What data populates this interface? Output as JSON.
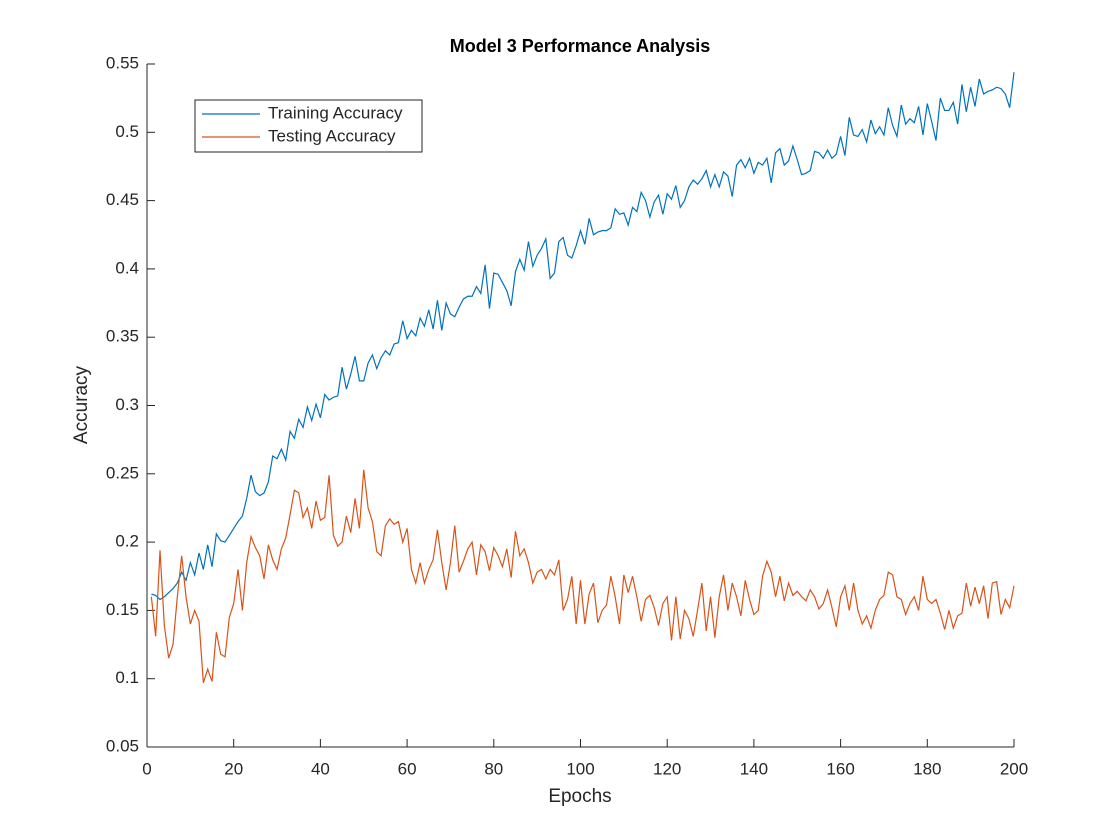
{
  "chart_data": {
    "type": "line",
    "title": "Model 3 Performance Analysis",
    "x_label": "Epochs",
    "y_label": "Accuracy",
    "x": [
      1,
      2,
      3,
      4,
      5,
      6,
      7,
      8,
      9,
      10,
      11,
      12,
      13,
      14,
      15,
      16,
      17,
      18,
      19,
      20,
      21,
      22,
      23,
      24,
      25,
      26,
      27,
      28,
      29,
      30,
      31,
      32,
      33,
      34,
      35,
      36,
      37,
      38,
      39,
      40,
      41,
      42,
      43,
      44,
      45,
      46,
      47,
      48,
      49,
      50,
      51,
      52,
      53,
      54,
      55,
      56,
      57,
      58,
      59,
      60,
      61,
      62,
      63,
      64,
      65,
      66,
      67,
      68,
      69,
      70,
      71,
      72,
      73,
      74,
      75,
      76,
      77,
      78,
      79,
      80,
      81,
      82,
      83,
      84,
      85,
      86,
      87,
      88,
      89,
      90,
      91,
      92,
      93,
      94,
      95,
      96,
      97,
      98,
      99,
      100,
      101,
      102,
      103,
      104,
      105,
      106,
      107,
      108,
      109,
      110,
      111,
      112,
      113,
      114,
      115,
      116,
      117,
      118,
      119,
      120,
      121,
      122,
      123,
      124,
      125,
      126,
      127,
      128,
      129,
      130,
      131,
      132,
      133,
      134,
      135,
      136,
      137,
      138,
      139,
      140,
      141,
      142,
      143,
      144,
      145,
      146,
      147,
      148,
      149,
      150,
      151,
      152,
      153,
      154,
      155,
      156,
      157,
      158,
      159,
      160,
      161,
      162,
      163,
      164,
      165,
      166,
      167,
      168,
      169,
      170,
      171,
      172,
      173,
      174,
      175,
      176,
      177,
      178,
      179,
      180,
      181,
      182,
      183,
      184,
      185,
      186,
      187,
      188,
      189,
      190,
      191,
      192,
      193,
      194,
      195,
      196,
      197,
      198,
      199,
      200
    ],
    "series": [
      {
        "name": "Training Accuracy",
        "color": "#0072bd",
        "values": [
          0.162,
          0.161,
          0.158,
          0.16,
          0.163,
          0.166,
          0.17,
          0.178,
          0.172,
          0.185,
          0.176,
          0.192,
          0.18,
          0.198,
          0.182,
          0.206,
          0.201,
          0.2,
          0.205,
          0.21,
          0.215,
          0.219,
          0.232,
          0.249,
          0.237,
          0.234,
          0.236,
          0.244,
          0.263,
          0.261,
          0.268,
          0.26,
          0.281,
          0.276,
          0.29,
          0.284,
          0.299,
          0.289,
          0.301,
          0.291,
          0.308,
          0.304,
          0.306,
          0.307,
          0.328,
          0.312,
          0.323,
          0.336,
          0.318,
          0.318,
          0.331,
          0.337,
          0.327,
          0.335,
          0.34,
          0.337,
          0.345,
          0.346,
          0.362,
          0.349,
          0.355,
          0.351,
          0.364,
          0.358,
          0.37,
          0.356,
          0.377,
          0.355,
          0.375,
          0.367,
          0.365,
          0.372,
          0.378,
          0.38,
          0.38,
          0.387,
          0.382,
          0.403,
          0.371,
          0.397,
          0.396,
          0.39,
          0.384,
          0.373,
          0.398,
          0.407,
          0.399,
          0.42,
          0.402,
          0.41,
          0.415,
          0.422,
          0.393,
          0.397,
          0.42,
          0.423,
          0.41,
          0.408,
          0.417,
          0.428,
          0.418,
          0.437,
          0.425,
          0.427,
          0.428,
          0.428,
          0.43,
          0.444,
          0.44,
          0.441,
          0.432,
          0.445,
          0.442,
          0.456,
          0.45,
          0.438,
          0.449,
          0.454,
          0.44,
          0.455,
          0.451,
          0.461,
          0.445,
          0.45,
          0.46,
          0.465,
          0.462,
          0.466,
          0.472,
          0.46,
          0.469,
          0.46,
          0.471,
          0.468,
          0.453,
          0.476,
          0.48,
          0.474,
          0.481,
          0.47,
          0.478,
          0.476,
          0.481,
          0.463,
          0.485,
          0.488,
          0.476,
          0.479,
          0.49,
          0.48,
          0.469,
          0.47,
          0.472,
          0.486,
          0.485,
          0.481,
          0.487,
          0.481,
          0.484,
          0.497,
          0.483,
          0.511,
          0.498,
          0.497,
          0.502,
          0.493,
          0.509,
          0.499,
          0.504,
          0.498,
          0.518,
          0.505,
          0.497,
          0.52,
          0.506,
          0.51,
          0.507,
          0.519,
          0.498,
          0.521,
          0.508,
          0.494,
          0.525,
          0.516,
          0.516,
          0.522,
          0.506,
          0.535,
          0.515,
          0.533,
          0.519,
          0.539,
          0.528,
          0.53,
          0.531,
          0.533,
          0.532,
          0.528,
          0.518,
          0.544
        ]
      },
      {
        "name": "Testing Accuracy",
        "color": "#d95319",
        "values": [
          0.16,
          0.131,
          0.194,
          0.139,
          0.115,
          0.125,
          0.16,
          0.19,
          0.16,
          0.14,
          0.15,
          0.142,
          0.097,
          0.107,
          0.098,
          0.134,
          0.118,
          0.116,
          0.145,
          0.155,
          0.18,
          0.15,
          0.185,
          0.204,
          0.196,
          0.19,
          0.173,
          0.198,
          0.187,
          0.18,
          0.195,
          0.203,
          0.22,
          0.238,
          0.236,
          0.218,
          0.225,
          0.21,
          0.23,
          0.216,
          0.218,
          0.249,
          0.205,
          0.197,
          0.2,
          0.219,
          0.207,
          0.232,
          0.21,
          0.253,
          0.225,
          0.215,
          0.193,
          0.19,
          0.212,
          0.217,
          0.213,
          0.215,
          0.2,
          0.21,
          0.18,
          0.17,
          0.185,
          0.17,
          0.18,
          0.187,
          0.209,
          0.185,
          0.165,
          0.185,
          0.212,
          0.178,
          0.186,
          0.195,
          0.2,
          0.176,
          0.198,
          0.193,
          0.179,
          0.196,
          0.19,
          0.182,
          0.195,
          0.174,
          0.208,
          0.19,
          0.195,
          0.185,
          0.17,
          0.178,
          0.18,
          0.173,
          0.18,
          0.176,
          0.187,
          0.15,
          0.158,
          0.175,
          0.14,
          0.172,
          0.14,
          0.162,
          0.17,
          0.141,
          0.15,
          0.154,
          0.175,
          0.16,
          0.14,
          0.176,
          0.163,
          0.175,
          0.16,
          0.142,
          0.158,
          0.161,
          0.152,
          0.139,
          0.155,
          0.16,
          0.128,
          0.16,
          0.129,
          0.15,
          0.144,
          0.131,
          0.15,
          0.17,
          0.135,
          0.16,
          0.13,
          0.16,
          0.176,
          0.15,
          0.17,
          0.16,
          0.146,
          0.172,
          0.158,
          0.147,
          0.15,
          0.175,
          0.186,
          0.178,
          0.16,
          0.175,
          0.157,
          0.17,
          0.161,
          0.164,
          0.16,
          0.157,
          0.165,
          0.16,
          0.151,
          0.155,
          0.165,
          0.152,
          0.138,
          0.16,
          0.168,
          0.15,
          0.17,
          0.15,
          0.14,
          0.146,
          0.137,
          0.15,
          0.158,
          0.161,
          0.178,
          0.176,
          0.16,
          0.158,
          0.147,
          0.155,
          0.16,
          0.15,
          0.175,
          0.158,
          0.155,
          0.158,
          0.148,
          0.136,
          0.15,
          0.137,
          0.146,
          0.148,
          0.17,
          0.153,
          0.167,
          0.155,
          0.168,
          0.144,
          0.17,
          0.171,
          0.147,
          0.158,
          0.152,
          0.168
        ]
      }
    ],
    "xlim": [
      0,
      200
    ],
    "xticks": [
      0,
      20,
      40,
      60,
      80,
      100,
      120,
      140,
      160,
      180,
      200
    ],
    "ylim": [
      0.05,
      0.55
    ],
    "yticks": [
      0.05,
      0.1,
      0.15,
      0.2,
      0.25,
      0.3,
      0.35,
      0.4,
      0.45,
      0.5,
      0.55
    ],
    "legend": "upper left"
  }
}
